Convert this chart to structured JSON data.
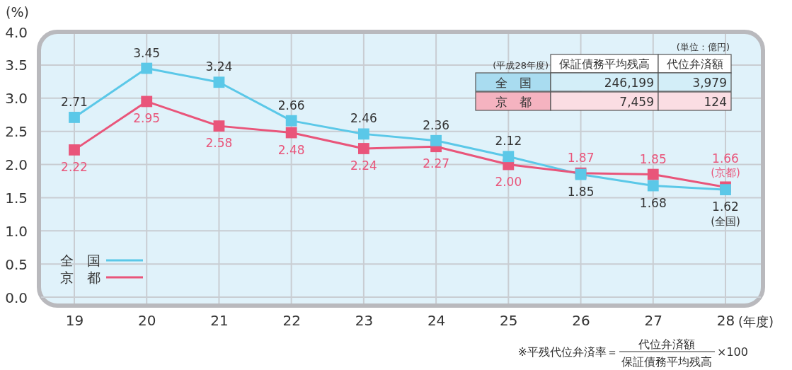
{
  "chart_data": {
    "type": "line",
    "ylabel": "(%)",
    "xlabel": "(年度)",
    "categories": [
      "19",
      "20",
      "21",
      "22",
      "23",
      "24",
      "25",
      "26",
      "27",
      "28"
    ],
    "series": [
      {
        "name": "全　国",
        "color": "#5bc8e8",
        "values": [
          2.71,
          3.45,
          3.24,
          2.66,
          2.46,
          2.36,
          2.12,
          1.85,
          1.68,
          1.62
        ],
        "value_labels": [
          "2.71",
          "3.45",
          "3.24",
          "2.66",
          "2.46",
          "2.36",
          "2.12",
          "1.85",
          "1.68",
          "1.62"
        ]
      },
      {
        "name": "京　都",
        "color": "#e9557a",
        "values": [
          2.22,
          2.95,
          2.58,
          2.48,
          2.24,
          2.27,
          2.0,
          1.87,
          1.85,
          1.66
        ],
        "value_labels": [
          "2.22",
          "2.95",
          "2.58",
          "2.48",
          "2.24",
          "2.27",
          "2.00",
          "1.87",
          "1.85",
          "1.66"
        ]
      }
    ],
    "ylim": [
      0,
      4
    ],
    "yticks": [
      {
        "value": 0,
        "label": "0.0"
      },
      {
        "value": 0.5,
        "label": "0.5"
      },
      {
        "value": 1,
        "label": "1.0"
      },
      {
        "value": 1.5,
        "label": "1.5"
      },
      {
        "value": 2,
        "label": "2.0"
      },
      {
        "value": 2.5,
        "label": "2.5"
      },
      {
        "value": 3,
        "label": "3.0"
      },
      {
        "value": 3.5,
        "label": "3.5"
      },
      {
        "value": 4,
        "label": "4.0"
      }
    ],
    "grid": true,
    "legend": "bottom left",
    "marker": "square",
    "line_style": "solid",
    "annotations": [
      "(単位：億円)",
      "(平成28年度)",
      "保証債務平均残高",
      "代位弁済額",
      "全　国",
      "246,199",
      "3,979",
      "京　都",
      "7,459",
      "124",
      "(京都)",
      "(全国)",
      "※平残代位弁済率＝",
      "代位弁済額",
      "保証債務平均残高",
      "×100"
    ]
  }
}
